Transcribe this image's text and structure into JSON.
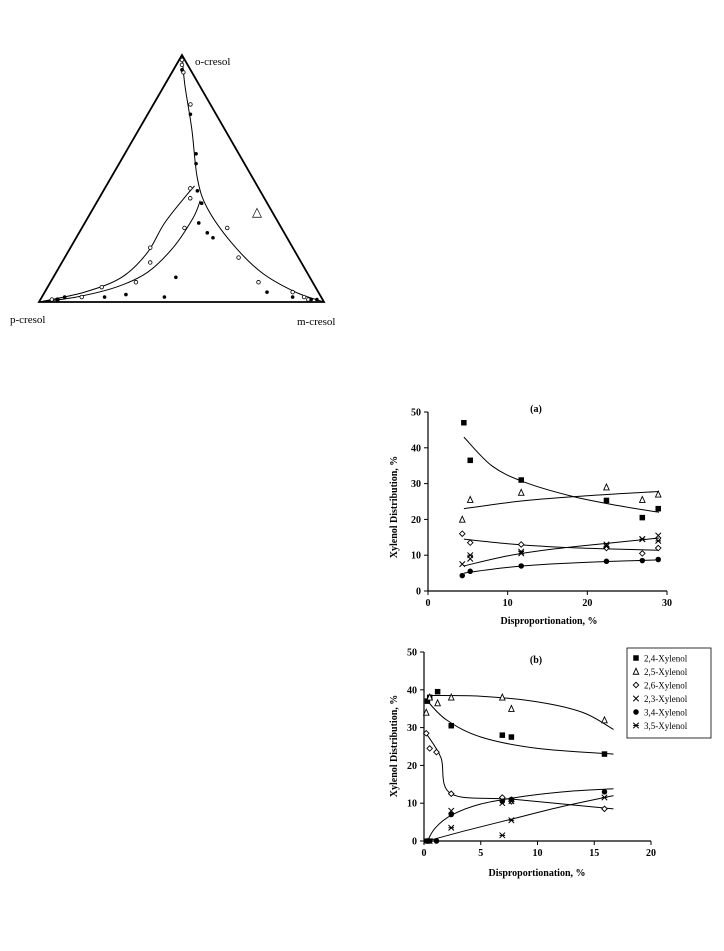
{
  "chart_data": [
    {
      "type": "scatter",
      "subtype": "ternary",
      "vertices": [
        "o-cresol",
        "p-cresol",
        "m-cresol"
      ],
      "annotation": "△",
      "open_points": [
        [
          0.98,
          0.01,
          0.01
        ],
        [
          0.96,
          0.02,
          0.02
        ],
        [
          0.93,
          0.03,
          0.04
        ],
        [
          0.8,
          0.07,
          0.13
        ],
        [
          0.46,
          0.24,
          0.3
        ],
        [
          0.42,
          0.26,
          0.32
        ],
        [
          0.3,
          0.34,
          0.36
        ],
        [
          0.22,
          0.5,
          0.28
        ],
        [
          0.16,
          0.53,
          0.31
        ],
        [
          0.08,
          0.62,
          0.3
        ],
        [
          0.06,
          0.75,
          0.19
        ],
        [
          0.02,
          0.84,
          0.14
        ],
        [
          0.01,
          0.95,
          0.04
        ],
        [
          0.01,
          0.93,
          0.06
        ],
        [
          0.3,
          0.19,
          0.51
        ],
        [
          0.18,
          0.21,
          0.61
        ],
        [
          0.08,
          0.19,
          0.73
        ],
        [
          0.04,
          0.09,
          0.87
        ],
        [
          0.02,
          0.06,
          0.92
        ],
        [
          0.01,
          0.05,
          0.94
        ]
      ],
      "filled_points": [
        [
          0.94,
          0.03,
          0.03
        ],
        [
          0.76,
          0.09,
          0.15
        ],
        [
          0.6,
          0.15,
          0.25
        ],
        [
          0.56,
          0.17,
          0.27
        ],
        [
          0.45,
          0.22,
          0.33
        ],
        [
          0.4,
          0.23,
          0.37
        ],
        [
          0.32,
          0.28,
          0.4
        ],
        [
          0.28,
          0.27,
          0.45
        ],
        [
          0.26,
          0.26,
          0.48
        ],
        [
          0.1,
          0.47,
          0.43
        ],
        [
          0.02,
          0.55,
          0.43
        ],
        [
          0.03,
          0.68,
          0.29
        ],
        [
          0.02,
          0.76,
          0.22
        ],
        [
          0.01,
          0.93,
          0.06
        ],
        [
          0.02,
          0.9,
          0.08
        ],
        [
          0.04,
          0.18,
          0.78
        ],
        [
          0.02,
          0.1,
          0.88
        ],
        [
          0.01,
          0.04,
          0.95
        ],
        [
          0.01,
          0.02,
          0.97
        ]
      ],
      "curves": [
        [
          [
            1.0,
            0,
            0
          ],
          [
            0.88,
            0.05,
            0.07
          ],
          [
            0.7,
            0.115,
            0.185
          ],
          [
            0.5,
            0.195,
            0.305
          ],
          [
            0.38,
            0.22,
            0.4
          ],
          [
            0.24,
            0.205,
            0.555
          ],
          [
            0.12,
            0.16,
            0.72
          ],
          [
            0.04,
            0.08,
            0.88
          ],
          [
            0,
            0,
            1.0
          ]
        ],
        [
          [
            0,
            1.0,
            0
          ],
          [
            0.04,
            0.82,
            0.14
          ],
          [
            0.1,
            0.66,
            0.24
          ],
          [
            0.2,
            0.52,
            0.28
          ],
          [
            0.32,
            0.4,
            0.28
          ],
          [
            0.43,
            0.27,
            0.3
          ],
          [
            0.47,
            0.22,
            0.31
          ]
        ],
        [
          [
            0,
            1.0,
            0
          ],
          [
            0.02,
            0.86,
            0.12
          ],
          [
            0.06,
            0.7,
            0.24
          ],
          [
            0.12,
            0.56,
            0.32
          ],
          [
            0.22,
            0.42,
            0.36
          ],
          [
            0.34,
            0.29,
            0.37
          ],
          [
            0.41,
            0.23,
            0.36
          ]
        ]
      ]
    },
    {
      "type": "scatter",
      "title": "(a)",
      "xlabel": "Disproportionation, %",
      "ylabel": "Xylenol Distribution, %",
      "xlim": [
        0,
        30
      ],
      "ylim": [
        0,
        50
      ],
      "xticks": [
        0,
        10,
        20,
        30
      ],
      "yticks": [
        0,
        10,
        20,
        30,
        40,
        50
      ],
      "series": [
        {
          "name": "2,4-Xylenol",
          "marker": "filled-square",
          "points": [
            [
              4.5,
              47
            ],
            [
              5.3,
              36.5
            ],
            [
              11.7,
              31
            ],
            [
              22.4,
              25.3
            ],
            [
              26.9,
              20.5
            ],
            [
              28.9,
              23
            ]
          ],
          "fit": [
            [
              4.5,
              43
            ],
            [
              8,
              35
            ],
            [
              12,
              30.5
            ],
            [
              18,
              26.5
            ],
            [
              24,
              23.8
            ],
            [
              29,
              22
            ]
          ]
        },
        {
          "name": "2,5-Xylenol",
          "marker": "open-triangle",
          "points": [
            [
              4.3,
              20
            ],
            [
              5.3,
              25.5
            ],
            [
              11.7,
              27.5
            ],
            [
              22.4,
              29
            ],
            [
              26.9,
              25.5
            ],
            [
              28.9,
              27
            ]
          ],
          "fit": [
            [
              4.5,
              23
            ],
            [
              12,
              25.2
            ],
            [
              20,
              26.6
            ],
            [
              29,
              27.8
            ]
          ]
        },
        {
          "name": "2,6-Xylenol",
          "marker": "open-diamond",
          "points": [
            [
              4.3,
              16
            ],
            [
              5.3,
              13.5
            ],
            [
              11.7,
              13
            ],
            [
              22.4,
              12
            ],
            [
              26.9,
              10.5
            ],
            [
              28.9,
              12
            ]
          ],
          "fit": [
            [
              4.5,
              14.5
            ],
            [
              10,
              13.2
            ],
            [
              16,
              12.3
            ],
            [
              22,
              11.8
            ],
            [
              29,
              11.4
            ]
          ]
        },
        {
          "name": "2,3-Xylenol",
          "marker": "x",
          "points": [
            [
              4.3,
              7.5
            ],
            [
              5.3,
              9
            ],
            [
              11.7,
              10.5
            ],
            [
              22.4,
              13
            ],
            [
              26.9,
              14.5
            ],
            [
              28.9,
              15.5
            ]
          ],
          "fit": [
            [
              4.5,
              7
            ],
            [
              10,
              9.8
            ],
            [
              16,
              11.8
            ],
            [
              22,
              13.2
            ],
            [
              29,
              14.8
            ]
          ]
        },
        {
          "name": "3,4-Xylenol",
          "marker": "filled-circle",
          "points": [
            [
              4.3,
              4.3
            ],
            [
              5.3,
              5.5
            ],
            [
              11.7,
              7
            ],
            [
              22.4,
              8.3
            ],
            [
              26.9,
              8.5
            ],
            [
              28.9,
              8.8
            ]
          ],
          "fit": [
            [
              4.5,
              5
            ],
            [
              10,
              6.6
            ],
            [
              16,
              7.6
            ],
            [
              22,
              8.2
            ],
            [
              29,
              8.7
            ]
          ]
        },
        {
          "name": "3,5-Xylenol",
          "marker": "star-x",
          "points": [
            [
              5.3,
              10
            ],
            [
              11.7,
              11
            ],
            [
              22.4,
              12.5
            ],
            [
              26.9,
              14.5
            ],
            [
              28.9,
              14
            ]
          ],
          "fit": []
        }
      ]
    },
    {
      "type": "scatter",
      "title": "(b)",
      "xlabel": "Disproportionation, %",
      "ylabel": "Xylenol Distribution, %",
      "xlim": [
        0,
        20
      ],
      "ylim": [
        0,
        50
      ],
      "xticks": [
        0,
        5,
        10,
        15,
        20
      ],
      "yticks": [
        0,
        10,
        20,
        30,
        40,
        50
      ],
      "legend": [
        "2,4-Xylenol",
        "2,5-Xylenol",
        "2,6-Xylenol",
        "2,3-Xylenol",
        "3,4-Xylenol",
        "3,5-Xylenol"
      ],
      "legend_position": "right",
      "series": [
        {
          "name": "2,4-Xylenol",
          "marker": "filled-square",
          "points": [
            [
              0.3,
              37
            ],
            [
              0.5,
              38
            ],
            [
              1.2,
              39.5
            ],
            [
              2.4,
              30.5
            ],
            [
              6.9,
              28
            ],
            [
              7.7,
              27.5
            ],
            [
              15.9,
              23
            ]
          ],
          "fit": [
            [
              0.3,
              37
            ],
            [
              2,
              32
            ],
            [
              5,
              27.5
            ],
            [
              10,
              24.5
            ],
            [
              16.7,
              23
            ]
          ]
        },
        {
          "name": "2,5-Xylenol",
          "marker": "open-triangle",
          "points": [
            [
              0.2,
              34
            ],
            [
              0.5,
              38
            ],
            [
              1.2,
              36.5
            ],
            [
              2.4,
              38
            ],
            [
              6.9,
              38
            ],
            [
              7.7,
              35
            ],
            [
              15.9,
              32
            ]
          ],
          "fit": [
            [
              0.3,
              38.5
            ],
            [
              5,
              38.3
            ],
            [
              10,
              36.8
            ],
            [
              14,
              34
            ],
            [
              16.7,
              29.5
            ]
          ]
        },
        {
          "name": "2,6-Xylenol",
          "marker": "open-diamond",
          "points": [
            [
              0.2,
              28.5
            ],
            [
              0.5,
              24.5
            ],
            [
              1.1,
              23.5
            ],
            [
              2.4,
              12.5
            ],
            [
              6.9,
              11.5
            ],
            [
              7.7,
              10.5
            ],
            [
              15.9,
              8.5
            ]
          ],
          "fit": [
            [
              0.3,
              28
            ],
            [
              1.5,
              22
            ],
            [
              2.4,
              12.5
            ],
            [
              8,
              11
            ],
            [
              16.7,
              8.5
            ]
          ]
        },
        {
          "name": "2,3-Xylenol",
          "marker": "x",
          "points": [
            [
              2.4,
              8
            ],
            [
              6.9,
              10
            ],
            [
              7.7,
              10.5
            ]
          ],
          "fit": []
        },
        {
          "name": "3,4-Xylenol",
          "marker": "filled-circle",
          "points": [
            [
              0.2,
              0
            ],
            [
              0.5,
              0
            ],
            [
              1.1,
              0
            ],
            [
              2.4,
              7
            ],
            [
              6.9,
              10.5
            ],
            [
              7.7,
              11
            ],
            [
              15.9,
              13
            ]
          ],
          "fit": [
            [
              0.3,
              0
            ],
            [
              1,
              3.5
            ],
            [
              2.4,
              6.8
            ],
            [
              5,
              9.8
            ],
            [
              9,
              11.9
            ],
            [
              13,
              13.2
            ],
            [
              16.7,
              13.8
            ]
          ]
        },
        {
          "name": "3,5-Xylenol",
          "marker": "star-x",
          "points": [
            [
              0.2,
              0
            ],
            [
              0.5,
              0
            ],
            [
              2.4,
              3.5
            ],
            [
              6.9,
              1.5
            ],
            [
              7.7,
              5.5
            ],
            [
              15.9,
              11.5
            ]
          ],
          "fit": [
            [
              0.3,
              0
            ],
            [
              4,
              3
            ],
            [
              8,
              6
            ],
            [
              12,
              9
            ],
            [
              16.7,
              12
            ]
          ]
        }
      ]
    }
  ]
}
